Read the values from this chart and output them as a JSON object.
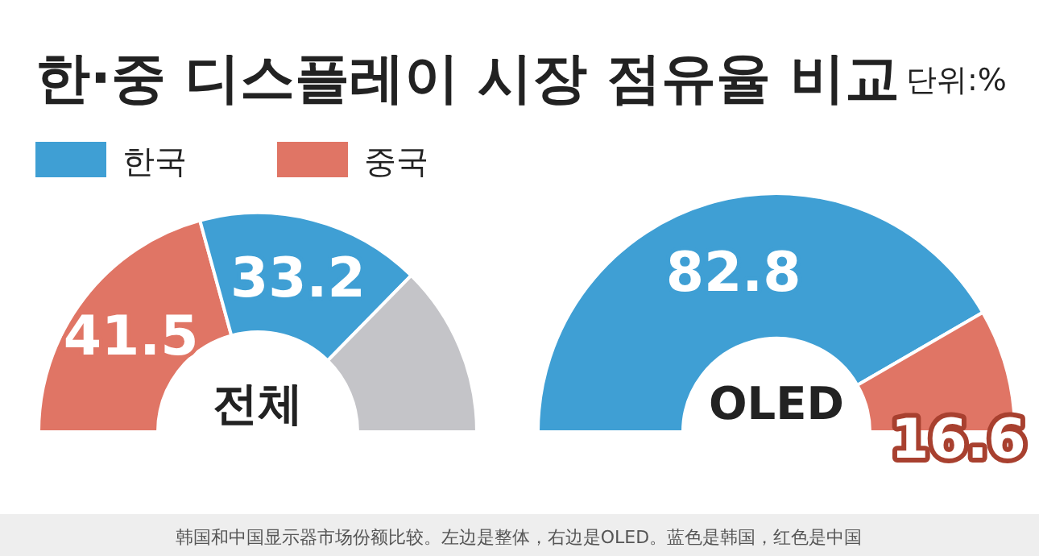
{
  "chart_data": [
    {
      "type": "donut",
      "title": "한·중 디스플레이 시장 점유율 비교",
      "legend": "top left",
      "categories": [
        "중국",
        "한국",
        null
      ],
      "values": [
        41.5,
        33.2,
        25.3
      ],
      "colors": [
        "#e07565",
        "#3f9fd4",
        "#c4c4c8"
      ],
      "value_labels": [
        "41.5",
        "33.2",
        null
      ],
      "annotations": [
        "전체"
      ]
    },
    {
      "type": "donut",
      "subtitle": "단위:%",
      "categories": [
        null,
        null
      ],
      "values": [
        82.8,
        16.6
      ],
      "colors": [
        "#3f9fd4",
        "#e07565"
      ],
      "data_labels": true,
      "annotations": [
        "OLED",
        "韩国和中国显示器市场份额比较。左边是整体，右边是OLED。蓝色是韩国，红色是中国"
      ]
    }
  ]
}
